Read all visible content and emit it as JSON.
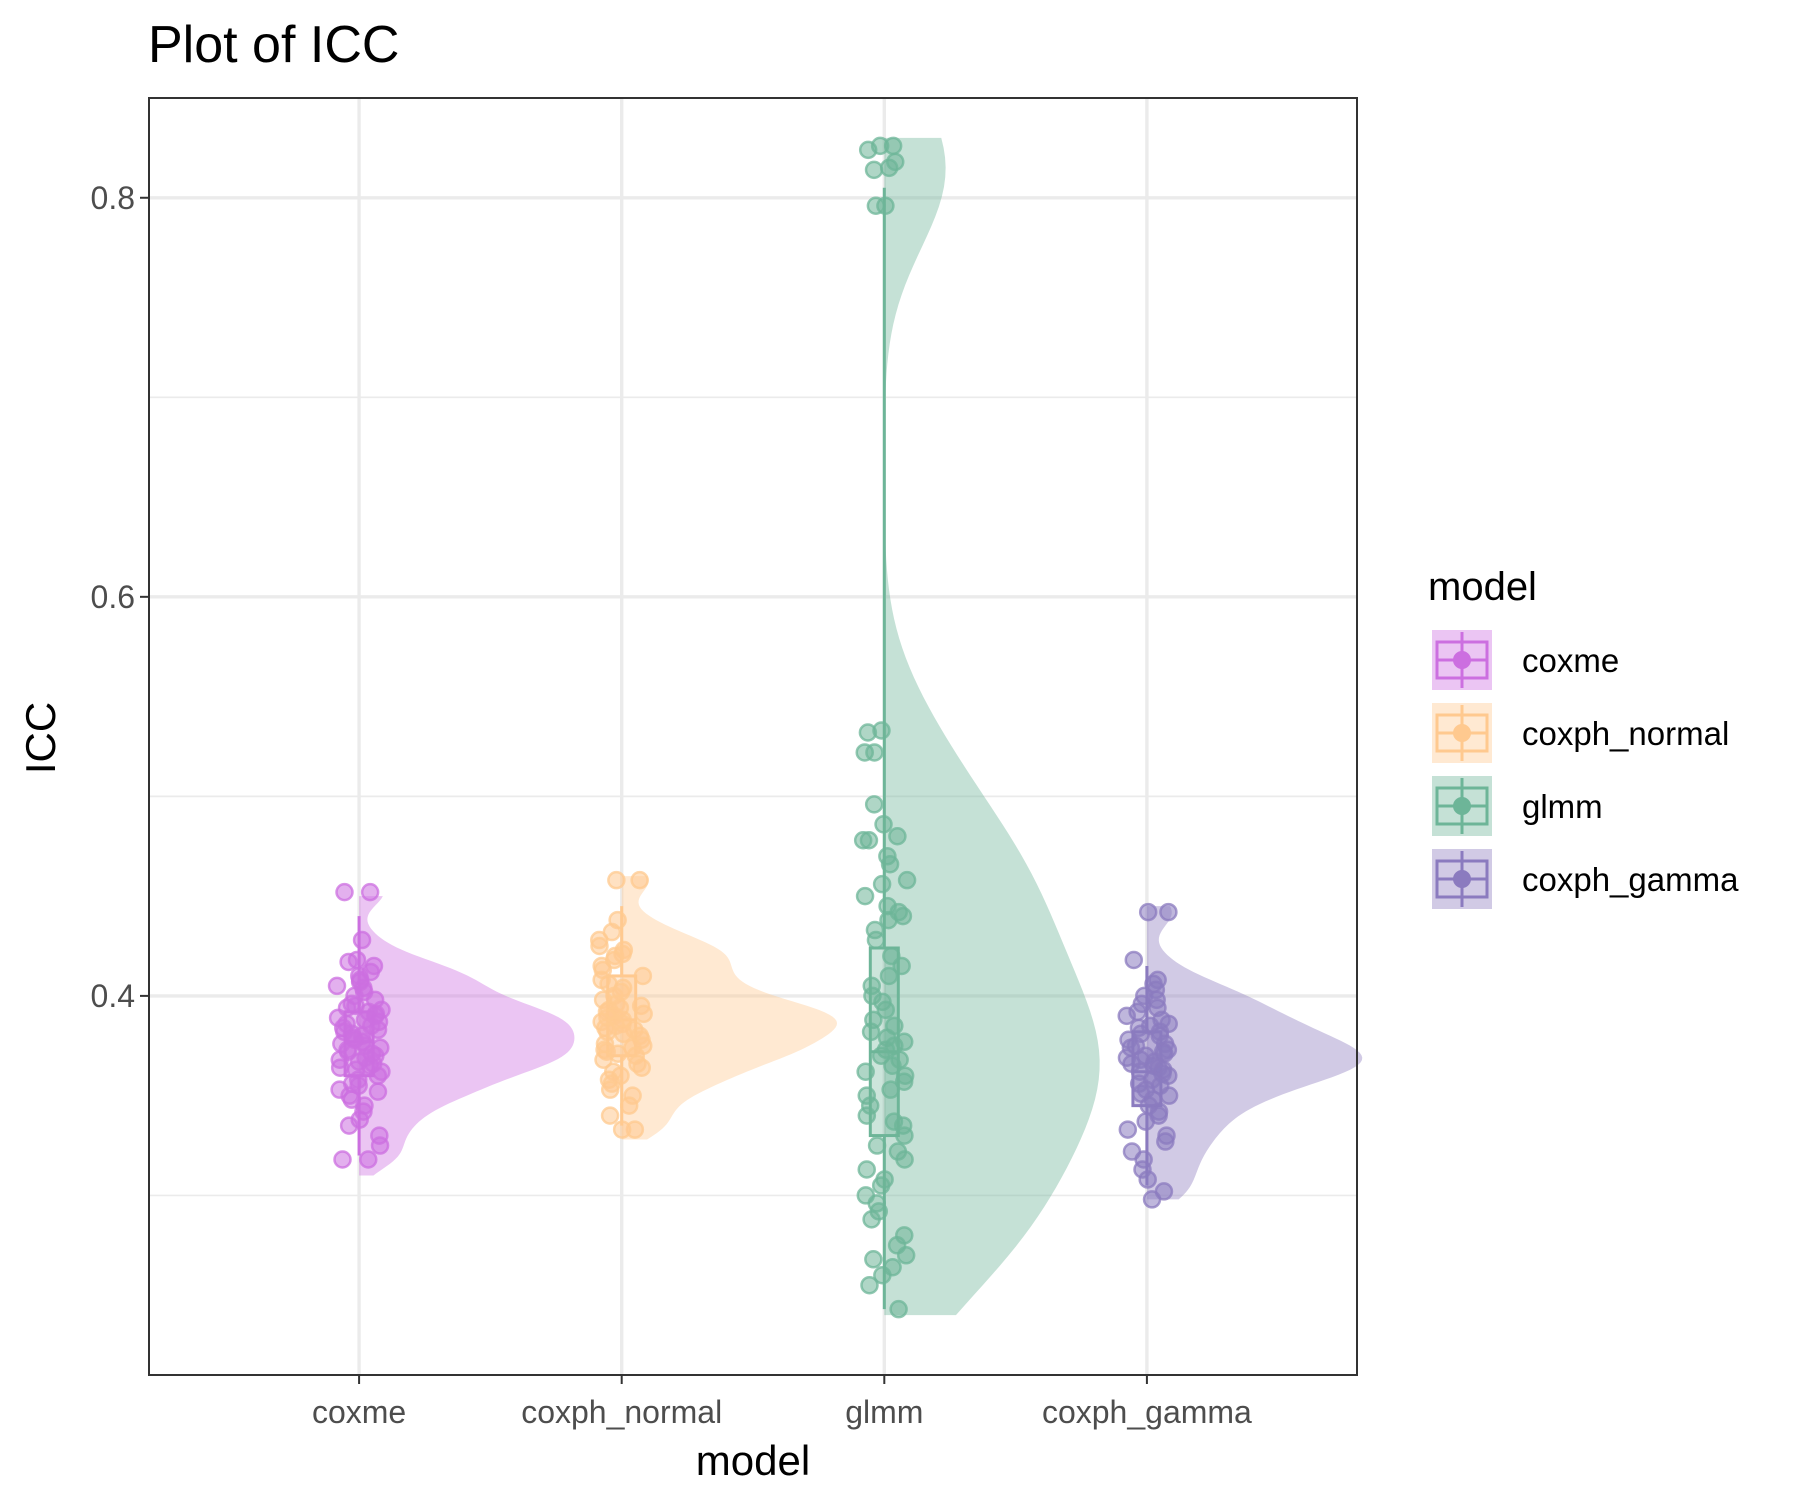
{
  "chart_data": {
    "type": "raincloud",
    "title": "Plot of ICC",
    "xlabel": "model",
    "ylabel": "ICC",
    "categories": [
      "coxme",
      "coxph_normal",
      "glmm",
      "coxph_gamma"
    ],
    "ylim": [
      0.21,
      0.85
    ],
    "yticks": [
      0.4,
      0.6,
      0.8
    ],
    "ytick_labels": [
      "0.4",
      "0.6",
      "0.8"
    ],
    "grid": true,
    "legend": {
      "title": "model",
      "position": "right"
    },
    "colors": {
      "coxme": "#cc6fe0",
      "coxph_normal": "#ffc98f",
      "glmm": "#6db598",
      "coxph_gamma": "#8b7bbf"
    },
    "series": [
      {
        "name": "coxme",
        "box": {
          "min": 0.32,
          "q1": 0.36,
          "median": 0.377,
          "q3": 0.392,
          "max": 0.44
        },
        "density": {
          "mode": 0.375,
          "from": 0.31,
          "to": 0.45
        },
        "points": [
          0.452,
          0.452,
          0.428,
          0.418,
          0.417,
          0.415,
          0.412,
          0.41,
          0.408,
          0.407,
          0.405,
          0.404,
          0.402,
          0.4,
          0.398,
          0.396,
          0.395,
          0.394,
          0.393,
          0.392,
          0.391,
          0.39,
          0.389,
          0.388,
          0.387,
          0.386,
          0.385,
          0.384,
          0.383,
          0.382,
          0.381,
          0.38,
          0.379,
          0.378,
          0.377,
          0.376,
          0.375,
          0.374,
          0.373,
          0.372,
          0.371,
          0.37,
          0.369,
          0.368,
          0.367,
          0.366,
          0.365,
          0.364,
          0.363,
          0.362,
          0.36,
          0.358,
          0.356,
          0.355,
          0.353,
          0.352,
          0.35,
          0.348,
          0.345,
          0.342,
          0.338,
          0.335,
          0.33,
          0.325,
          0.318,
          0.318
        ]
      },
      {
        "name": "coxph_normal",
        "box": {
          "min": 0.335,
          "q1": 0.37,
          "median": 0.388,
          "q3": 0.41,
          "max": 0.445
        },
        "density": {
          "mode": 0.388,
          "from": 0.328,
          "to": 0.46
        },
        "points": [
          0.458,
          0.458,
          0.438,
          0.432,
          0.428,
          0.425,
          0.423,
          0.421,
          0.42,
          0.418,
          0.415,
          0.413,
          0.41,
          0.408,
          0.406,
          0.404,
          0.402,
          0.4,
          0.398,
          0.396,
          0.395,
          0.394,
          0.393,
          0.392,
          0.391,
          0.39,
          0.389,
          0.388,
          0.387,
          0.386,
          0.385,
          0.384,
          0.383,
          0.382,
          0.381,
          0.38,
          0.378,
          0.376,
          0.375,
          0.374,
          0.373,
          0.372,
          0.371,
          0.37,
          0.368,
          0.366,
          0.364,
          0.362,
          0.36,
          0.358,
          0.356,
          0.353,
          0.35,
          0.345,
          0.34,
          0.333,
          0.333
        ]
      },
      {
        "name": "glmm",
        "box": {
          "min": 0.243,
          "q1": 0.33,
          "median": 0.372,
          "q3": 0.424,
          "max": 0.805
        },
        "density": {
          "mode": 0.36,
          "from": 0.24,
          "to": 0.83
        },
        "points": [
          0.826,
          0.826,
          0.824,
          0.818,
          0.815,
          0.814,
          0.796,
          0.796,
          0.533,
          0.532,
          0.522,
          0.522,
          0.496,
          0.486,
          0.48,
          0.478,
          0.478,
          0.47,
          0.466,
          0.458,
          0.456,
          0.45,
          0.445,
          0.442,
          0.44,
          0.438,
          0.433,
          0.428,
          0.42,
          0.415,
          0.41,
          0.405,
          0.4,
          0.397,
          0.393,
          0.388,
          0.385,
          0.382,
          0.379,
          0.377,
          0.375,
          0.373,
          0.37,
          0.368,
          0.365,
          0.362,
          0.36,
          0.357,
          0.353,
          0.35,
          0.345,
          0.34,
          0.337,
          0.335,
          0.33,
          0.325,
          0.322,
          0.318,
          0.313,
          0.308,
          0.305,
          0.3,
          0.296,
          0.292,
          0.288,
          0.28,
          0.275,
          0.27,
          0.268,
          0.264,
          0.26,
          0.255,
          0.243
        ]
      },
      {
        "name": "coxph_gamma",
        "box": {
          "min": 0.305,
          "q1": 0.345,
          "median": 0.362,
          "q3": 0.382,
          "max": 0.415
        },
        "density": {
          "mode": 0.365,
          "from": 0.298,
          "to": 0.445
        },
        "points": [
          0.442,
          0.442,
          0.418,
          0.408,
          0.406,
          0.403,
          0.4,
          0.398,
          0.396,
          0.394,
          0.392,
          0.39,
          0.388,
          0.386,
          0.385,
          0.384,
          0.382,
          0.381,
          0.38,
          0.378,
          0.376,
          0.375,
          0.374,
          0.373,
          0.372,
          0.371,
          0.37,
          0.369,
          0.368,
          0.367,
          0.366,
          0.365,
          0.364,
          0.363,
          0.362,
          0.361,
          0.36,
          0.358,
          0.356,
          0.355,
          0.353,
          0.351,
          0.35,
          0.348,
          0.345,
          0.342,
          0.34,
          0.337,
          0.333,
          0.33,
          0.327,
          0.322,
          0.318,
          0.313,
          0.308,
          0.302,
          0.298
        ]
      }
    ]
  }
}
